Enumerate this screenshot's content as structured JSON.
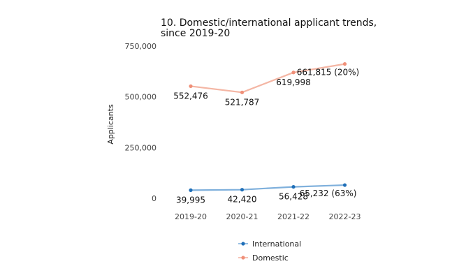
{
  "chart_data": {
    "type": "line",
    "title_lines": [
      "10. Domestic/international applicant trends,",
      "since 2019-20"
    ],
    "ylabel": "Applicants",
    "xlabel": "",
    "categories": [
      "2019-20",
      "2020-21",
      "2021-22",
      "2022-23"
    ],
    "ylim": [
      0,
      750000
    ],
    "yticks": [
      0,
      250000,
      500000,
      750000
    ],
    "ytick_labels": [
      "0",
      "250,000",
      "500,000",
      "750,000"
    ],
    "grid": false,
    "legend_position": "bottom",
    "series": [
      {
        "name": "Domestic",
        "values": [
          552476,
          521787,
          619998,
          661815
        ],
        "labels": [
          "552,476",
          "521,787",
          "619,998",
          "661,815 (20%)"
        ],
        "line_color": "#f4b6a4",
        "marker_color": "#f08f78"
      },
      {
        "name": "International",
        "values": [
          39995,
          42420,
          56428,
          65232
        ],
        "labels": [
          "39,995",
          "42,420",
          "56,428",
          "65,232 (63%)"
        ],
        "line_color": "#7fb0dc",
        "marker_color": "#1f6fb8"
      }
    ],
    "legend": [
      {
        "name": "International",
        "color": "#1f6fb8",
        "line_color": "#7fb0dc"
      },
      {
        "name": "Domestic",
        "color": "#f08f78",
        "line_color": "#f4b6a4"
      }
    ]
  }
}
